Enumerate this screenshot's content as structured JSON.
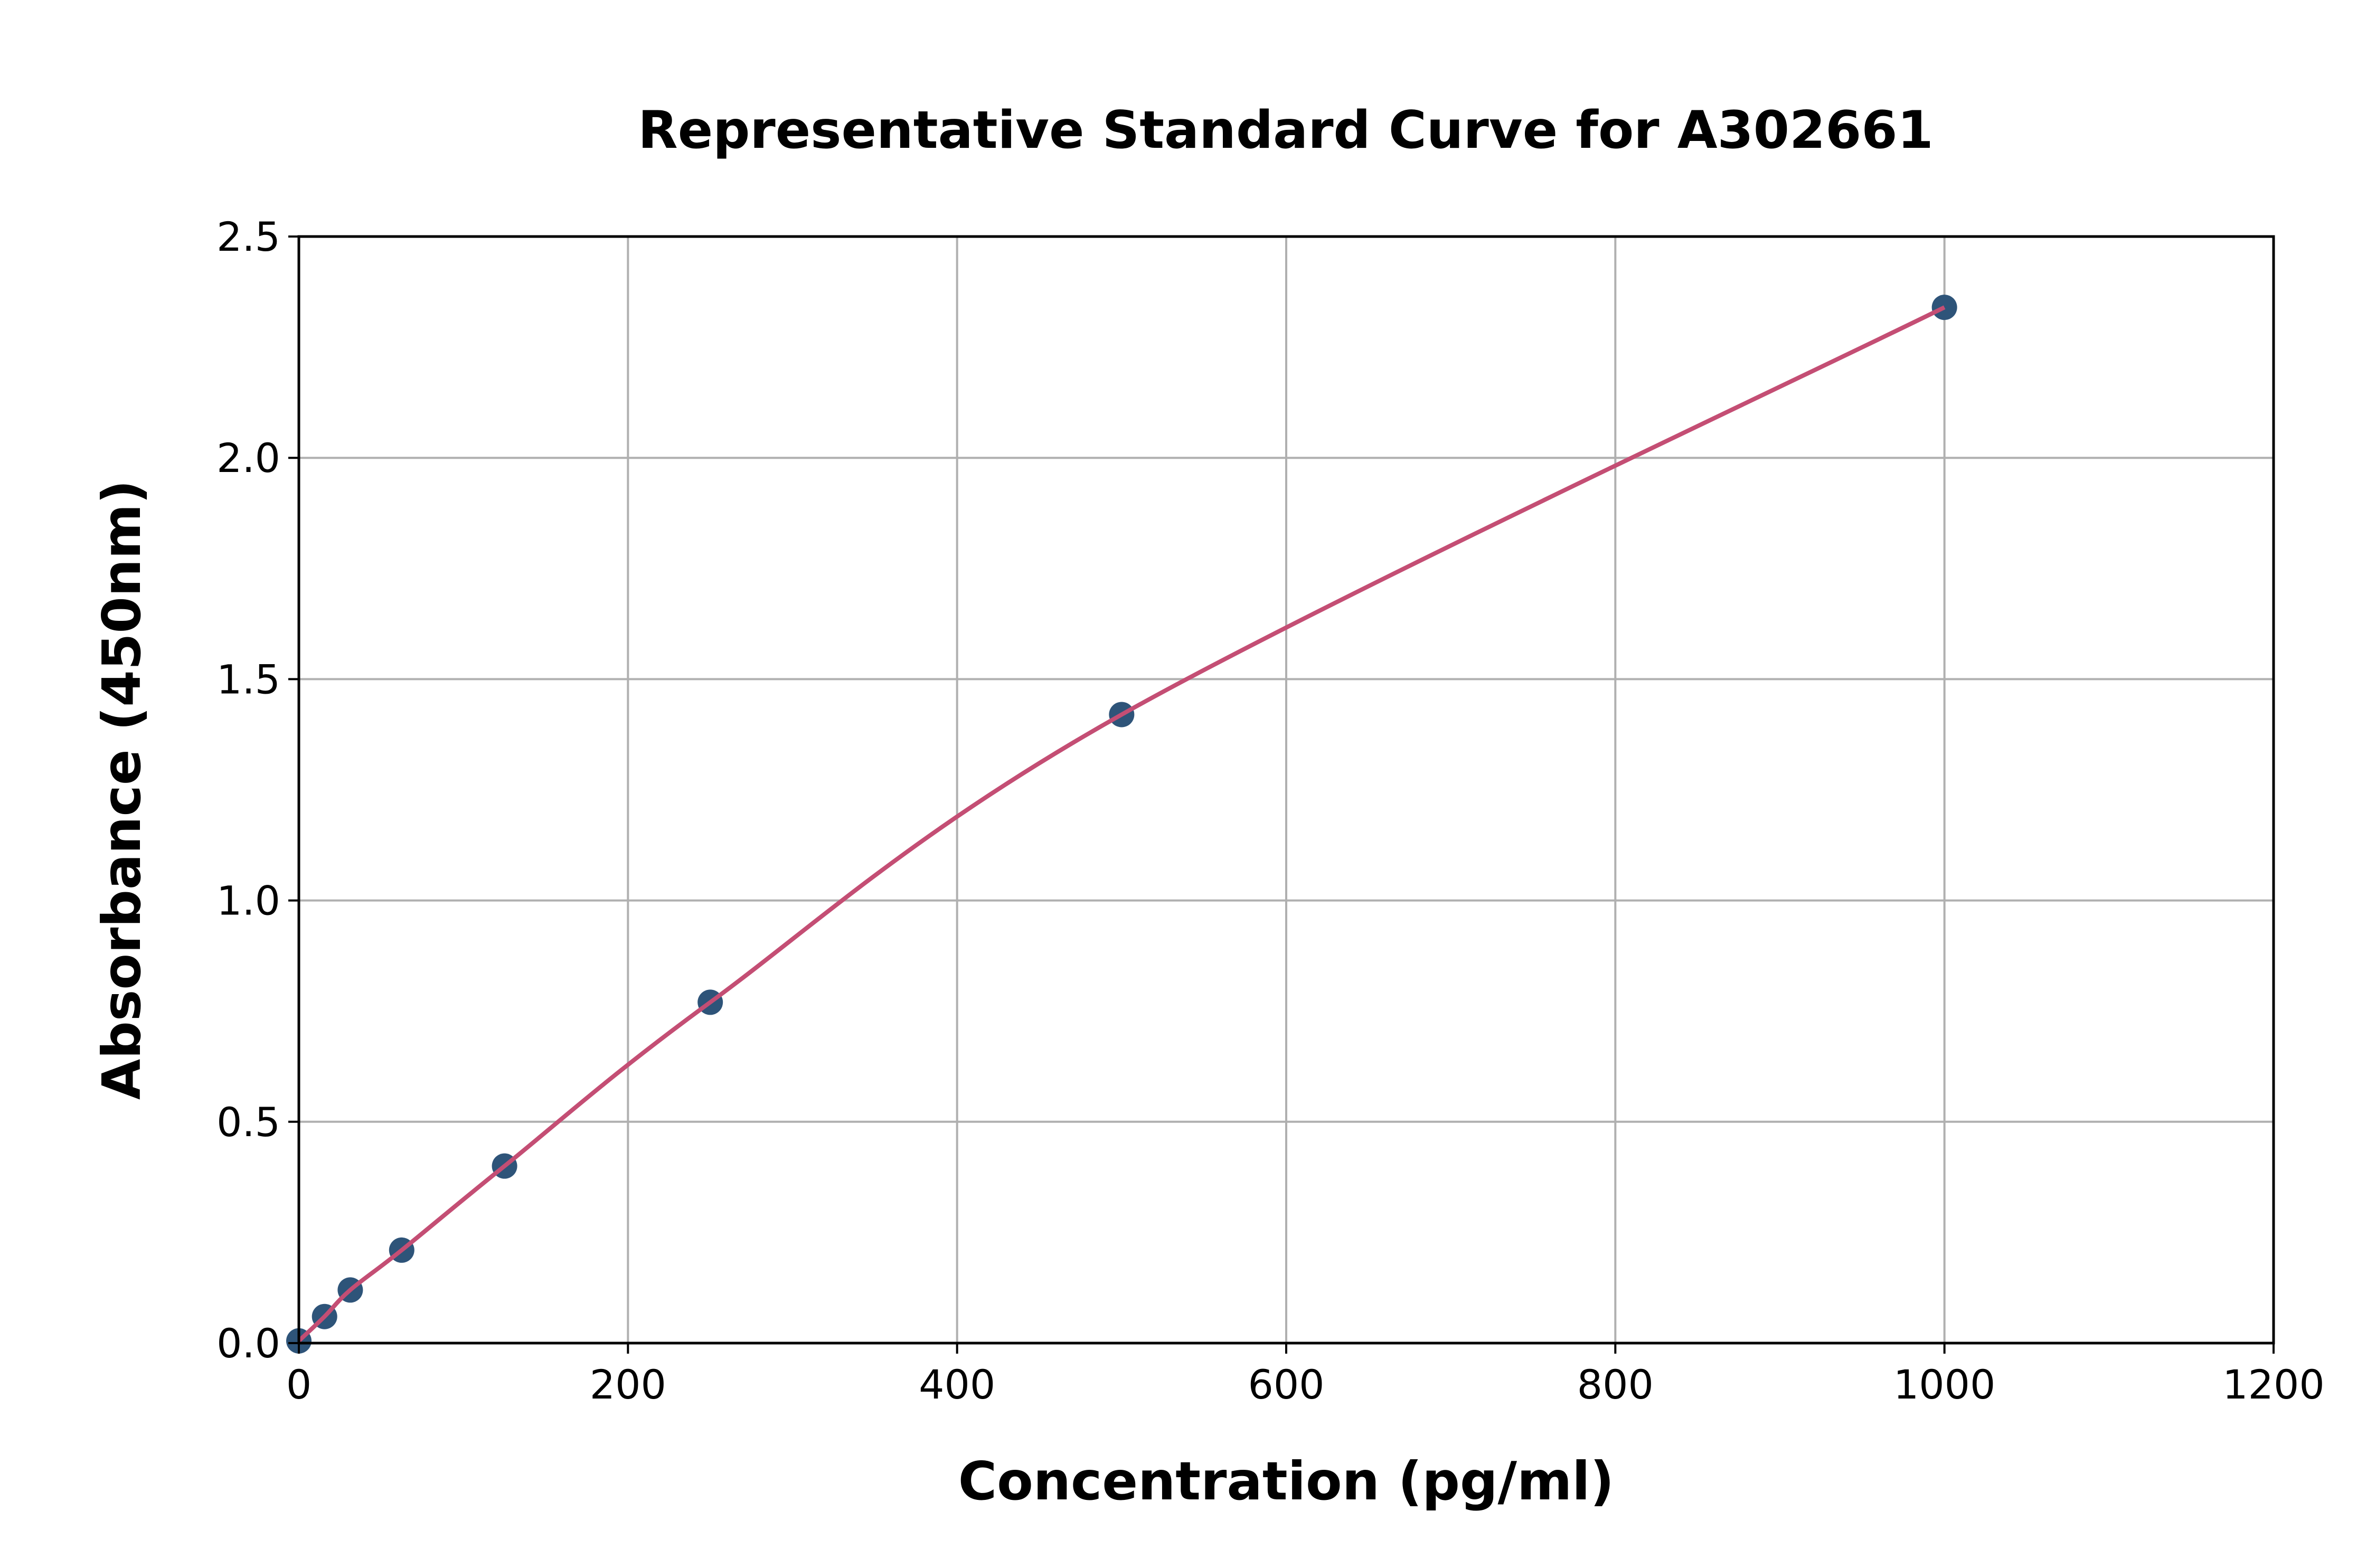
{
  "chart_data": {
    "type": "scatter",
    "title": "Representative Standard Curve for A302661",
    "xlabel": "Concentration (pg/ml)",
    "ylabel": "Absorbance (450nm)",
    "xlim": [
      0,
      1200
    ],
    "ylim": [
      0,
      2.5
    ],
    "xticks": [
      "0",
      "200",
      "400",
      "600",
      "800",
      "1000",
      "1200"
    ],
    "yticks": [
      "0.0",
      "0.5",
      "1.0",
      "1.5",
      "2.0",
      "2.5"
    ],
    "grid": true,
    "series": [
      {
        "x": [
          0,
          15.625,
          31.25,
          62.5,
          125,
          250,
          500,
          1000
        ],
        "y": [
          0.005,
          0.06,
          0.12,
          0.21,
          0.4,
          0.77,
          1.42,
          2.34
        ],
        "marker_color": "#2e5479",
        "fit_line_color": "#c44e74"
      }
    ]
  }
}
